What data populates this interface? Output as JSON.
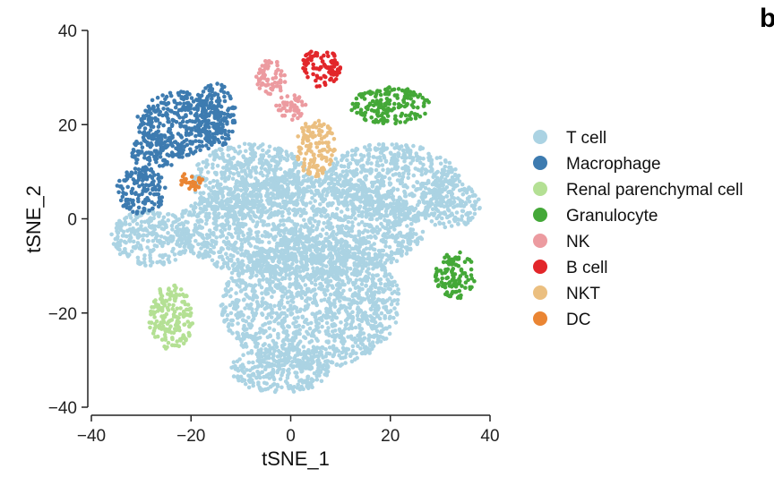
{
  "panel_letter": "b",
  "chart_data": {
    "type": "scatter",
    "xlabel": "tSNE_1",
    "ylabel": "tSNE_2",
    "xlim": [
      -40,
      40
    ],
    "ylim": [
      -40,
      40
    ],
    "xticks": [
      -40,
      -20,
      0,
      20,
      40
    ],
    "yticks": [
      -40,
      -20,
      0,
      20,
      40
    ],
    "xtick_labels": [
      "−40",
      "−20",
      "0",
      "20",
      "40"
    ],
    "ytick_labels": [
      "−40",
      "−20",
      "0",
      "20",
      "40"
    ],
    "grid": false,
    "legend": "right",
    "series": [
      {
        "name": "T cell",
        "color": "#abd3e3",
        "regions": [
          {
            "cx": 2,
            "cy": -2,
            "rx": 25,
            "ry": 11
          },
          {
            "cx": 4,
            "cy": -18,
            "rx": 18,
            "ry": 14
          },
          {
            "cx": -8,
            "cy": 8,
            "rx": 12,
            "ry": 8
          },
          {
            "cx": 20,
            "cy": 8,
            "rx": 14,
            "ry": 8
          },
          {
            "cx": 32,
            "cy": 3,
            "rx": 6,
            "ry": 5
          },
          {
            "cx": -28,
            "cy": -4,
            "rx": 8,
            "ry": 6
          },
          {
            "cx": -2,
            "cy": -32,
            "rx": 10,
            "ry": 5
          }
        ]
      },
      {
        "name": "Macrophage",
        "color": "#3d7bb0",
        "regions": [
          {
            "cx": -22,
            "cy": 20,
            "rx": 9,
            "ry": 7
          },
          {
            "cx": -15,
            "cy": 22,
            "rx": 4,
            "ry": 7
          },
          {
            "cx": -30,
            "cy": 6,
            "rx": 5,
            "ry": 5
          },
          {
            "cx": -27,
            "cy": 14,
            "rx": 5,
            "ry": 4
          }
        ]
      },
      {
        "name": "Renal parenchymal cell",
        "color": "#b4e094",
        "regions": [
          {
            "cx": -24,
            "cy": -21,
            "rx": 4.5,
            "ry": 7
          }
        ]
      },
      {
        "name": "Granulocyte",
        "color": "#44a838",
        "regions": [
          {
            "cx": 20,
            "cy": 24,
            "rx": 8,
            "ry": 4
          },
          {
            "cx": 33,
            "cy": -12,
            "rx": 4,
            "ry": 5
          }
        ]
      },
      {
        "name": "NK",
        "color": "#ec9ba0",
        "regions": [
          {
            "cx": -4,
            "cy": 30,
            "rx": 3,
            "ry": 4
          },
          {
            "cx": 0,
            "cy": 24,
            "rx": 3,
            "ry": 3
          }
        ]
      },
      {
        "name": "B cell",
        "color": "#e2262a",
        "regions": [
          {
            "cx": 6,
            "cy": 32,
            "rx": 4,
            "ry": 4
          }
        ]
      },
      {
        "name": "NKT",
        "color": "#ebbf80",
        "regions": [
          {
            "cx": 5,
            "cy": 15,
            "rx": 4,
            "ry": 6
          }
        ]
      },
      {
        "name": "DC",
        "color": "#ea8533",
        "regions": [
          {
            "cx": -20,
            "cy": 8,
            "rx": 2.5,
            "ry": 2
          }
        ]
      }
    ]
  }
}
